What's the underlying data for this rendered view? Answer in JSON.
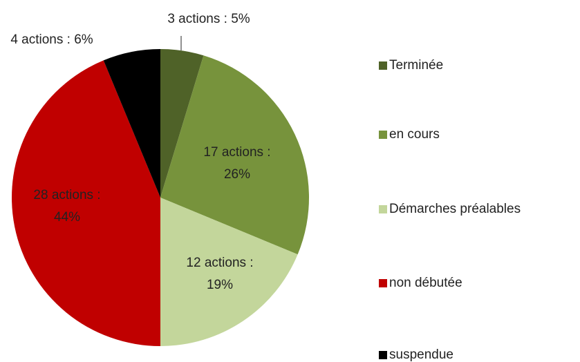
{
  "chart_data": {
    "type": "pie",
    "categories": [
      "Terminée",
      "en cours",
      "Démarches préalables",
      "non débutée",
      "suspendue"
    ],
    "values": [
      3,
      17,
      12,
      28,
      4
    ],
    "value_labels": [
      [
        "3 actions : 5%"
      ],
      [
        "17 actions :",
        "26%"
      ],
      [
        "12 actions :",
        "19%"
      ],
      [
        "28 actions :",
        "44%"
      ],
      [
        "4 actions : 6%"
      ]
    ],
    "colors": [
      "#4f6228",
      "#77933c",
      "#c3d69b",
      "#c00000",
      "#000000"
    ],
    "legend": "right"
  }
}
